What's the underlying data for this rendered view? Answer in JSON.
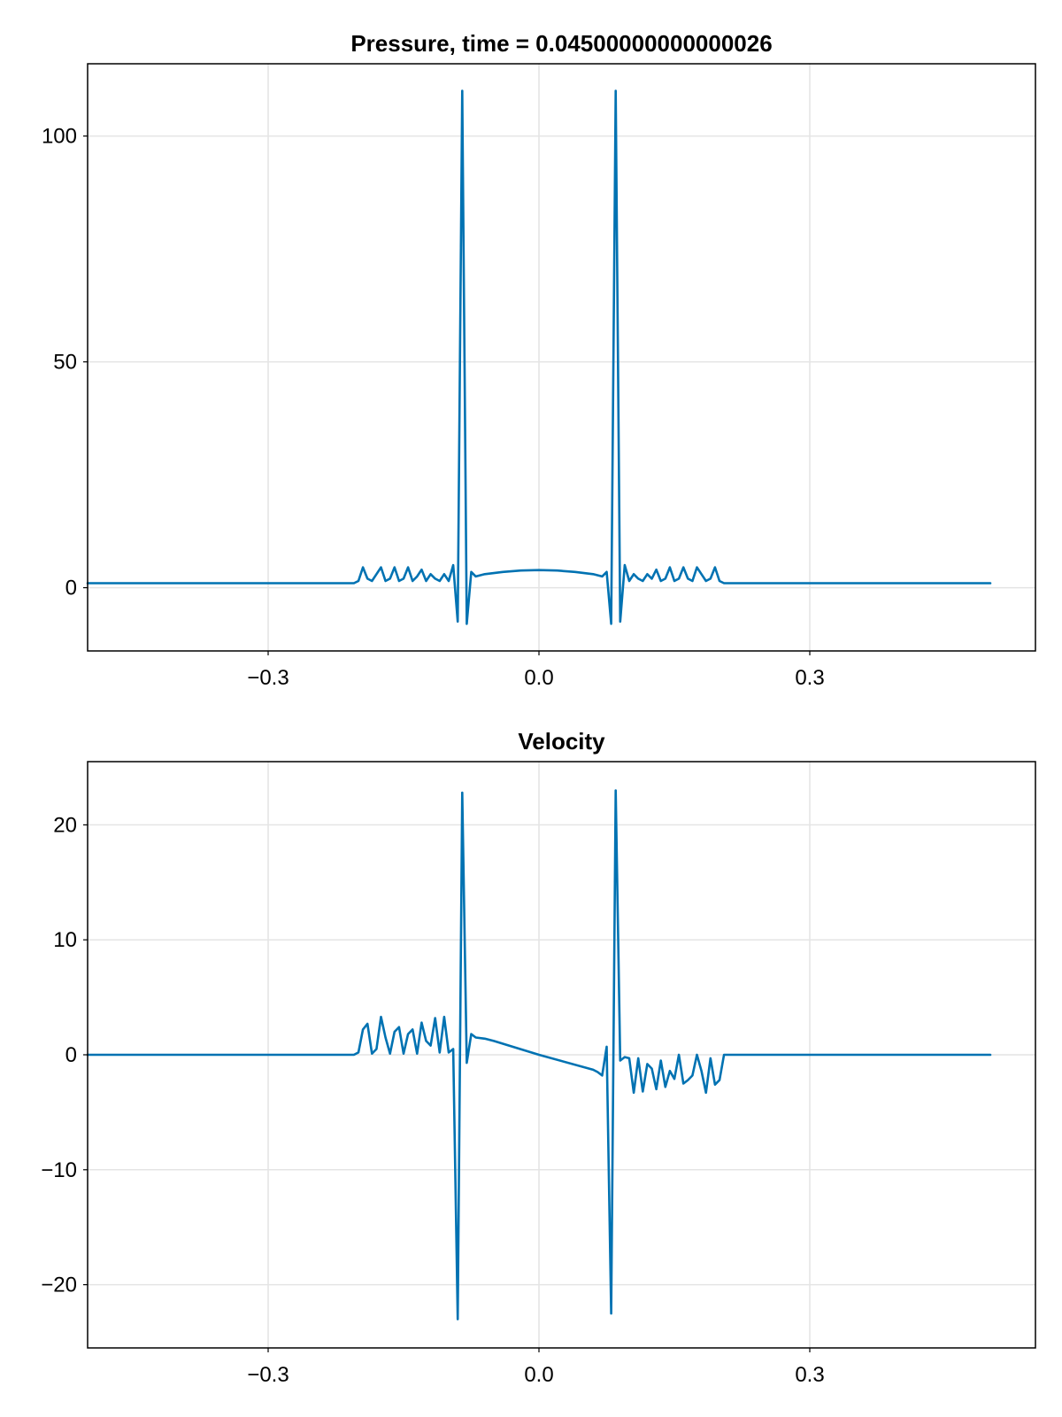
{
  "chart_data": [
    {
      "type": "line",
      "title": "Pressure, time = 0.04500000000000026",
      "xlabel": "",
      "ylabel": "",
      "xlim": [
        -0.5,
        0.55
      ],
      "ylim": [
        -14,
        116
      ],
      "xticks": [
        -0.3,
        0.0,
        0.3
      ],
      "xtick_labels": [
        "−0.3",
        "0.0",
        "0.3"
      ],
      "yticks": [
        0,
        50,
        100
      ],
      "ytick_labels": [
        "0",
        "50",
        "100"
      ],
      "grid": true,
      "legend": "none",
      "color": "#0072b2",
      "series": [
        {
          "x": [
            -0.5,
            -0.205,
            -0.2,
            -0.195,
            -0.19,
            -0.185,
            -0.18,
            -0.175,
            -0.17,
            -0.165,
            -0.16,
            -0.155,
            -0.15,
            -0.145,
            -0.14,
            -0.135,
            -0.13,
            -0.125,
            -0.12,
            -0.115,
            -0.11,
            -0.105,
            -0.1,
            -0.095,
            -0.09,
            -0.085,
            -0.08,
            -0.075,
            -0.07,
            -0.06,
            -0.04,
            -0.02,
            0.0,
            0.02,
            0.04,
            0.06,
            0.07,
            0.075,
            0.08,
            0.085,
            0.09,
            0.095,
            0.1,
            0.105,
            0.11,
            0.115,
            0.12,
            0.125,
            0.13,
            0.135,
            0.14,
            0.145,
            0.15,
            0.155,
            0.16,
            0.165,
            0.17,
            0.175,
            0.18,
            0.185,
            0.19,
            0.195,
            0.2,
            0.205,
            0.5
          ],
          "y": [
            1,
            1,
            1.5,
            4.5,
            2,
            1.5,
            3,
            4.5,
            1.5,
            2,
            4.5,
            1.5,
            2,
            4.5,
            1.5,
            2.5,
            4,
            1.5,
            3,
            2,
            1.5,
            3,
            1.5,
            5,
            -7.5,
            110,
            -8,
            3.5,
            2.5,
            3,
            3.5,
            3.8,
            3.9,
            3.8,
            3.5,
            3,
            2.5,
            3.5,
            -8,
            110,
            -7.5,
            5,
            1.5,
            3,
            2,
            1.5,
            3,
            2,
            4,
            1.5,
            2,
            4.5,
            1.5,
            2,
            4.5,
            2,
            1.5,
            4.5,
            3,
            1.5,
            2,
            4.5,
            1.5,
            1,
            1
          ]
        }
      ]
    },
    {
      "type": "line",
      "title": "Velocity",
      "xlabel": "",
      "ylabel": "",
      "xlim": [
        -0.5,
        0.55
      ],
      "ylim": [
        -25.5,
        25.5
      ],
      "xticks": [
        -0.3,
        0.0,
        0.3
      ],
      "xtick_labels": [
        "−0.3",
        "0.0",
        "0.3"
      ],
      "yticks": [
        -20,
        -10,
        0,
        10,
        20
      ],
      "ytick_labels": [
        "−20",
        "−10",
        "0",
        "10",
        "20"
      ],
      "grid": true,
      "legend": "none",
      "color": "#0072b2",
      "series": [
        {
          "x": [
            -0.5,
            -0.205,
            -0.2,
            -0.195,
            -0.19,
            -0.185,
            -0.18,
            -0.175,
            -0.17,
            -0.165,
            -0.16,
            -0.155,
            -0.15,
            -0.145,
            -0.14,
            -0.135,
            -0.13,
            -0.125,
            -0.12,
            -0.115,
            -0.11,
            -0.105,
            -0.1,
            -0.095,
            -0.09,
            -0.085,
            -0.08,
            -0.075,
            -0.07,
            -0.06,
            -0.05,
            0.0,
            0.06,
            0.065,
            0.07,
            0.075,
            0.08,
            0.085,
            0.09,
            0.095,
            0.1,
            0.105,
            0.11,
            0.115,
            0.12,
            0.125,
            0.13,
            0.135,
            0.14,
            0.145,
            0.15,
            0.155,
            0.16,
            0.165,
            0.17,
            0.175,
            0.18,
            0.185,
            0.19,
            0.195,
            0.2,
            0.205,
            0.5
          ],
          "y": [
            0,
            0,
            0.2,
            2.2,
            2.7,
            0.1,
            0.5,
            3.3,
            1.5,
            0.1,
            2,
            2.4,
            0.1,
            1.8,
            2.2,
            0.1,
            2.8,
            1.2,
            0.8,
            3.2,
            0.2,
            3.3,
            0.2,
            0.5,
            -23,
            22.8,
            -0.7,
            1.8,
            1.5,
            1.4,
            1.2,
            0,
            -1.3,
            -1.5,
            -1.8,
            0.7,
            -22.5,
            23,
            -0.5,
            -0.2,
            -0.3,
            -3.3,
            -0.3,
            -3.2,
            -0.8,
            -1.2,
            -3,
            -0.5,
            -2.8,
            -1.4,
            -2.1,
            0,
            -2.5,
            -2.2,
            -1.8,
            0,
            -1.4,
            -3.3,
            -0.3,
            -2.6,
            -2.2,
            0,
            0
          ]
        }
      ]
    }
  ]
}
